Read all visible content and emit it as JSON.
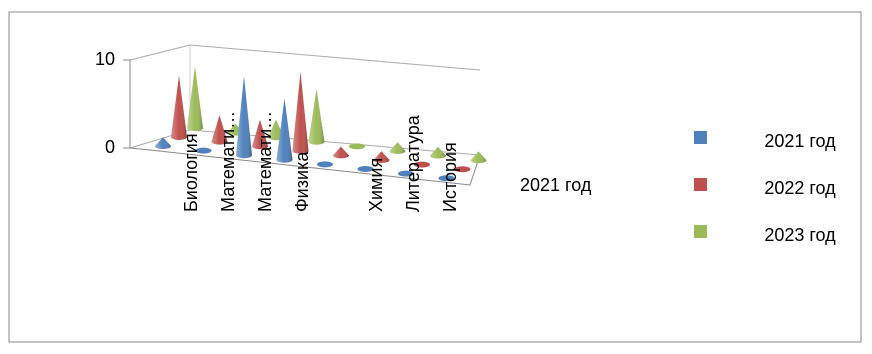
{
  "chart_data": {
    "type": "cone3d",
    "categories": [
      "Биология",
      "Математи…",
      "Математи…",
      "Физика",
      null,
      "Химия",
      "Литература",
      "История"
    ],
    "series": [
      {
        "name": "2021 год",
        "color": "#4f81bd",
        "values": [
          1,
          0,
          9,
          7,
          0,
          0,
          0,
          0
        ]
      },
      {
        "name": "2022 год",
        "color": "#c0504d",
        "values": [
          7,
          3,
          3,
          9,
          1,
          1,
          0,
          0
        ]
      },
      {
        "name": "2023 год",
        "color": "#9bbb59",
        "values": [
          7,
          1,
          2,
          6,
          0,
          1,
          1,
          1
        ]
      }
    ],
    "depth_labels": [
      "2021 год"
    ],
    "ylim": [
      0,
      10
    ],
    "yticks": [
      0,
      10
    ],
    "legend": "right"
  }
}
